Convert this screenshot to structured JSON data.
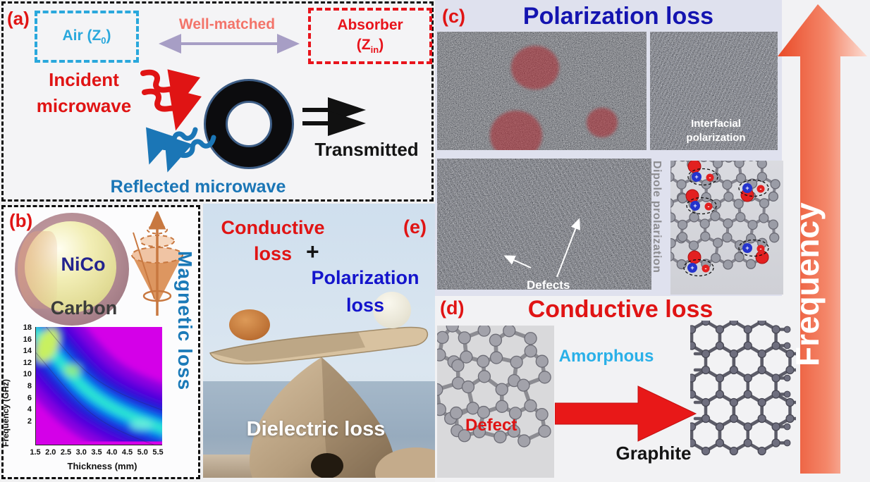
{
  "panels": {
    "a": {
      "label": "(a)",
      "air": {
        "pre": "Air (Z",
        "sub": "0",
        "post": ")"
      },
      "well_matched": "Well-matched",
      "absorber": {
        "line1": "Absorber",
        "pre": "(Z",
        "sub": "in",
        "post": ")"
      },
      "incident_line1": "Incident",
      "incident_line2": "microwave",
      "transmitted": "Transmitted",
      "reflected": "Reflected microwave"
    },
    "b": {
      "label": "(b)",
      "core": "NiCo",
      "shell": "Carbon",
      "loss_label": "Magnetic loss"
    },
    "c": {
      "label": "(c)",
      "title": "Polarization loss",
      "interfacial_line1": "Interfacial",
      "interfacial_line2": "polarization",
      "dipole": "Dipole prolarization",
      "defects": "Defects"
    },
    "d": {
      "label": "(d)",
      "title": "Conductive loss",
      "amorphous": "Amorphous",
      "defect": "Defect",
      "graphite": "Graphite"
    },
    "e": {
      "label": "(e)",
      "conductive_line1": "Conductive",
      "conductive_line2": "loss",
      "plus": "+",
      "polarization_line1": "Polarization",
      "polarization_line2": "loss",
      "dielectric": "Dielectric loss"
    }
  },
  "frequency_arrow": {
    "label": "Frequency"
  },
  "chart_data": {
    "type": "heatmap",
    "title": "",
    "xlabel": "Thickness (mm)",
    "ylabel": "Frequency (GHz)",
    "xticks": [
      "1.5",
      "2.0",
      "2.5",
      "3.0",
      "3.5",
      "4.0",
      "4.5",
      "5.0",
      "5.5"
    ],
    "yticks": [
      "2",
      "4",
      "6",
      "8",
      "10",
      "12",
      "14",
      "16",
      "18"
    ],
    "xlim": [
      1.5,
      5.5
    ],
    "ylim": [
      2,
      18
    ],
    "grid": false,
    "legend": "none",
    "colormap_low_to_high": [
      "#d400e8",
      "#5500dd",
      "#2218d6",
      "#0b4ce6",
      "#00a6f0",
      "#2fe8d0",
      "#c8f060"
    ],
    "series": [
      {
        "name": "absorption-band-ridge",
        "x_thickness_mm": [
          1.5,
          2.0,
          2.5,
          3.0,
          3.5,
          4.0,
          4.5,
          5.0,
          5.5
        ],
        "y_frequency_ghz": [
          17.5,
          14.5,
          12.0,
          10.0,
          8.0,
          6.5,
          5.5,
          4.8,
          4.0
        ]
      }
    ],
    "description": "Contour map: strong-absorption band (cyan/green) shifts from high frequency at thin coating to low frequency at thick coating; background magenta = weak absorption"
  },
  "colors": {
    "accent_red": "#e01414",
    "accent_blue": "#1414b0",
    "cyan": "#2aa8dc",
    "salmon": "#f3746a",
    "reflected_blue": "#1b76b6",
    "magnetic_blue": "#1b7ab8",
    "arrow_orange": "#ee5a33",
    "lavender_bg": "#dfe1ee"
  }
}
